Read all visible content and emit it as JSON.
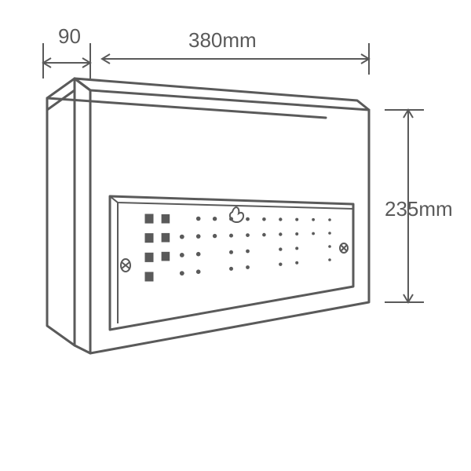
{
  "diagram": {
    "type": "technical-dimensioned-drawing",
    "background_color": "#ffffff",
    "line_color": "#5a5a5a",
    "text_color": "#5a5a5a",
    "thin_stroke_width": 2,
    "thick_stroke_width": 3,
    "font_size_pt": 20,
    "dimensions": {
      "depth": {
        "value": 90,
        "label": "90"
      },
      "width": {
        "value": 380,
        "label": "380mm"
      },
      "height": {
        "value": 235,
        "label": "235mm"
      }
    },
    "indicator_rows": [
      {
        "y": 0,
        "squares": [
          0,
          1
        ],
        "dots": [
          3,
          4,
          5,
          6,
          7,
          8,
          9,
          10,
          11
        ]
      },
      {
        "y": 1,
        "squares": [
          0,
          1
        ],
        "dots": [
          2,
          3,
          4,
          5,
          6,
          7,
          8,
          9,
          10,
          11
        ]
      },
      {
        "y": 2,
        "squares": [
          0,
          1
        ],
        "dots": [
          2,
          3,
          5,
          6,
          8,
          9,
          11
        ]
      },
      {
        "y": 3,
        "squares": [
          0
        ],
        "dots": [
          2,
          3,
          5,
          6,
          8,
          9,
          11
        ]
      }
    ]
  }
}
